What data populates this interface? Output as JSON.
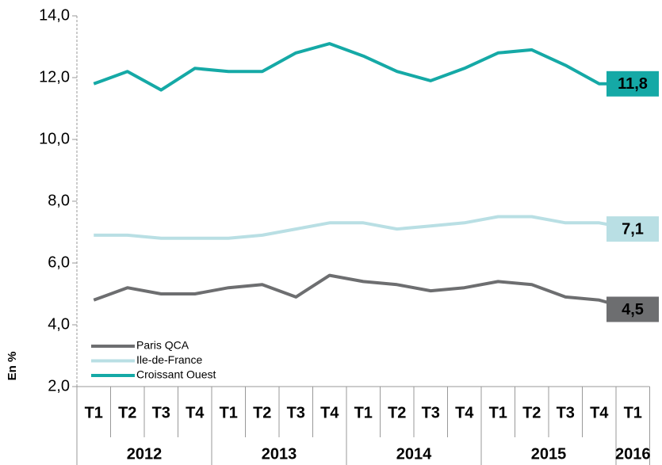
{
  "chart_data": {
    "type": "line",
    "y_label": "En %",
    "categories": [
      "T1",
      "T2",
      "T3",
      "T4",
      "T1",
      "T2",
      "T3",
      "T4",
      "T1",
      "T2",
      "T3",
      "T4",
      "T1",
      "T2",
      "T3",
      "T4",
      "T1"
    ],
    "years": [
      "2012",
      "2013",
      "2014",
      "2015",
      "2016"
    ],
    "ylim": [
      2,
      14
    ],
    "yticks": [
      {
        "value": 2,
        "label": "2,0"
      },
      {
        "value": 4,
        "label": "4,0"
      },
      {
        "value": 6,
        "label": "6,0"
      },
      {
        "value": 8,
        "label": "8,0"
      },
      {
        "value": 10,
        "label": "10,0"
      },
      {
        "value": 12,
        "label": "12,0"
      },
      {
        "value": 14,
        "label": "14,0"
      }
    ],
    "legend": "lower left",
    "series": [
      {
        "name": "Paris QCA",
        "color": "#6d6e70",
        "label_text_color": "#ffffff",
        "values": [
          4.8,
          5.2,
          5.0,
          5.0,
          5.2,
          5.3,
          4.9,
          5.6,
          5.4,
          5.3,
          5.1,
          5.2,
          5.4,
          5.3,
          4.9,
          4.8,
          4.5
        ],
        "value_labels": [
          null,
          null,
          null,
          null,
          null,
          null,
          null,
          null,
          null,
          null,
          null,
          null,
          null,
          null,
          null,
          null,
          "4,5"
        ]
      },
      {
        "name": "Ile-de-France",
        "color": "#b9dfe4",
        "label_text_color": "#555555",
        "values": [
          6.9,
          6.9,
          6.8,
          6.8,
          6.8,
          6.9,
          7.1,
          7.3,
          7.3,
          7.1,
          7.2,
          7.3,
          7.5,
          7.5,
          7.3,
          7.3,
          7.1
        ],
        "value_labels": [
          null,
          null,
          null,
          null,
          null,
          null,
          null,
          null,
          null,
          null,
          null,
          null,
          null,
          null,
          null,
          null,
          "7,1"
        ]
      },
      {
        "name": "Croissant Ouest",
        "color": "#15a9a6",
        "label_text_color": "#ffffff",
        "values": [
          11.8,
          12.2,
          11.6,
          12.3,
          12.2,
          12.2,
          12.8,
          13.1,
          12.7,
          12.2,
          11.9,
          12.3,
          12.8,
          12.9,
          12.4,
          11.8,
          11.8
        ],
        "value_labels": [
          null,
          null,
          null,
          null,
          null,
          null,
          null,
          null,
          null,
          null,
          null,
          null,
          null,
          null,
          null,
          null,
          "11,8"
        ]
      }
    ]
  }
}
